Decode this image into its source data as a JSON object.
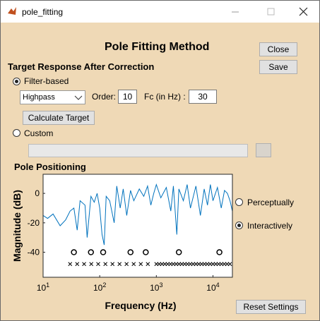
{
  "window": {
    "title": "pole_fitting"
  },
  "header": {
    "title": "Pole Fitting Method"
  },
  "buttons": {
    "close": "Close",
    "save": "Save",
    "calculate": "Calculate Target",
    "reset": "Reset Settings"
  },
  "target_section": {
    "title": "Target Response After Correction",
    "filter_radio": {
      "label": "Filter-based",
      "checked": true
    },
    "filter_type": "Highpass",
    "order_label": "Order:",
    "order_value": "10",
    "fc_label": "Fc (in Hz) :",
    "fc_value": "30",
    "custom_radio": {
      "label": "Custom",
      "checked": false
    }
  },
  "pole_section": {
    "title": "Pole Positioning",
    "perceptual_radio": {
      "label": "Perceptually",
      "checked": false
    },
    "interactive_radio": {
      "label": "Interactively",
      "checked": true
    }
  },
  "chart_data": {
    "type": "line",
    "xlabel": "Frequency (Hz)",
    "ylabel": "Magnitude (dB)",
    "xscale": "log",
    "xlim": [
      10,
      22050
    ],
    "ylim": [
      -57,
      13
    ],
    "xticks": [
      {
        "value": 10,
        "label": "10^1"
      },
      {
        "value": 100,
        "label": "10^2"
      },
      {
        "value": 1000,
        "label": "10^3"
      },
      {
        "value": 10000,
        "label": "10^4"
      }
    ],
    "yticks": [
      -40,
      -20,
      0
    ],
    "series": [
      {
        "style": "line",
        "color": "#0072bd",
        "x": [
          10,
          12,
          15,
          20,
          25,
          30,
          35,
          40,
          45,
          55,
          60,
          70,
          80,
          90,
          100,
          110,
          120,
          130,
          150,
          180,
          200,
          230,
          260,
          300,
          350,
          400,
          500,
          600,
          700,
          800,
          900,
          1000,
          1200,
          1500,
          1800,
          2000,
          2300,
          2500,
          3000,
          3500,
          4000,
          5000,
          6000,
          7000,
          8000,
          9000,
          10000,
          12000,
          14000,
          16000,
          18000,
          20000,
          22000
        ],
        "values": [
          -15,
          -17,
          -14,
          -22,
          -18,
          -12,
          -10,
          -25,
          -5,
          -8,
          -30,
          -2,
          -6,
          0,
          -10,
          -28,
          -35,
          -2,
          -5,
          -20,
          5,
          -10,
          3,
          -15,
          2,
          -5,
          3,
          -2,
          5,
          -8,
          0,
          6,
          -3,
          4,
          -12,
          5,
          -28,
          3,
          -5,
          6,
          -10,
          5,
          -15,
          3,
          -8,
          6,
          -5,
          4,
          -10,
          2,
          0,
          -5,
          -12
        ]
      },
      {
        "style": "o",
        "color": "#000000",
        "x": [
          35,
          70,
          115,
          350,
          650,
          2500,
          13000
        ],
        "values": [
          -40,
          -40,
          -40,
          -40,
          -40,
          -40,
          -40
        ]
      },
      {
        "style": "x",
        "color": "#000000",
        "x": [
          30,
          40,
          53,
          71,
          94,
          126,
          168,
          224,
          298,
          398,
          531,
          708,
          1000,
          1122,
          1259,
          1413,
          1585,
          1778,
          1995,
          2239,
          2512,
          2818,
          3162,
          3548,
          3981,
          4467,
          5012,
          5623,
          6310,
          7079,
          7943,
          8913,
          10000,
          11220,
          12589,
          14125,
          15849,
          17783,
          19953
        ],
        "values": [
          -48,
          -48,
          -48,
          -48,
          -48,
          -48,
          -48,
          -48,
          -48,
          -48,
          -48,
          -48,
          -48,
          -48,
          -48,
          -48,
          -48,
          -48,
          -48,
          -48,
          -48,
          -48,
          -48,
          -48,
          -48,
          -48,
          -48,
          -48,
          -48,
          -48,
          -48,
          -48,
          -48,
          -48,
          -48,
          -48,
          -48,
          -48,
          -48
        ]
      }
    ]
  }
}
